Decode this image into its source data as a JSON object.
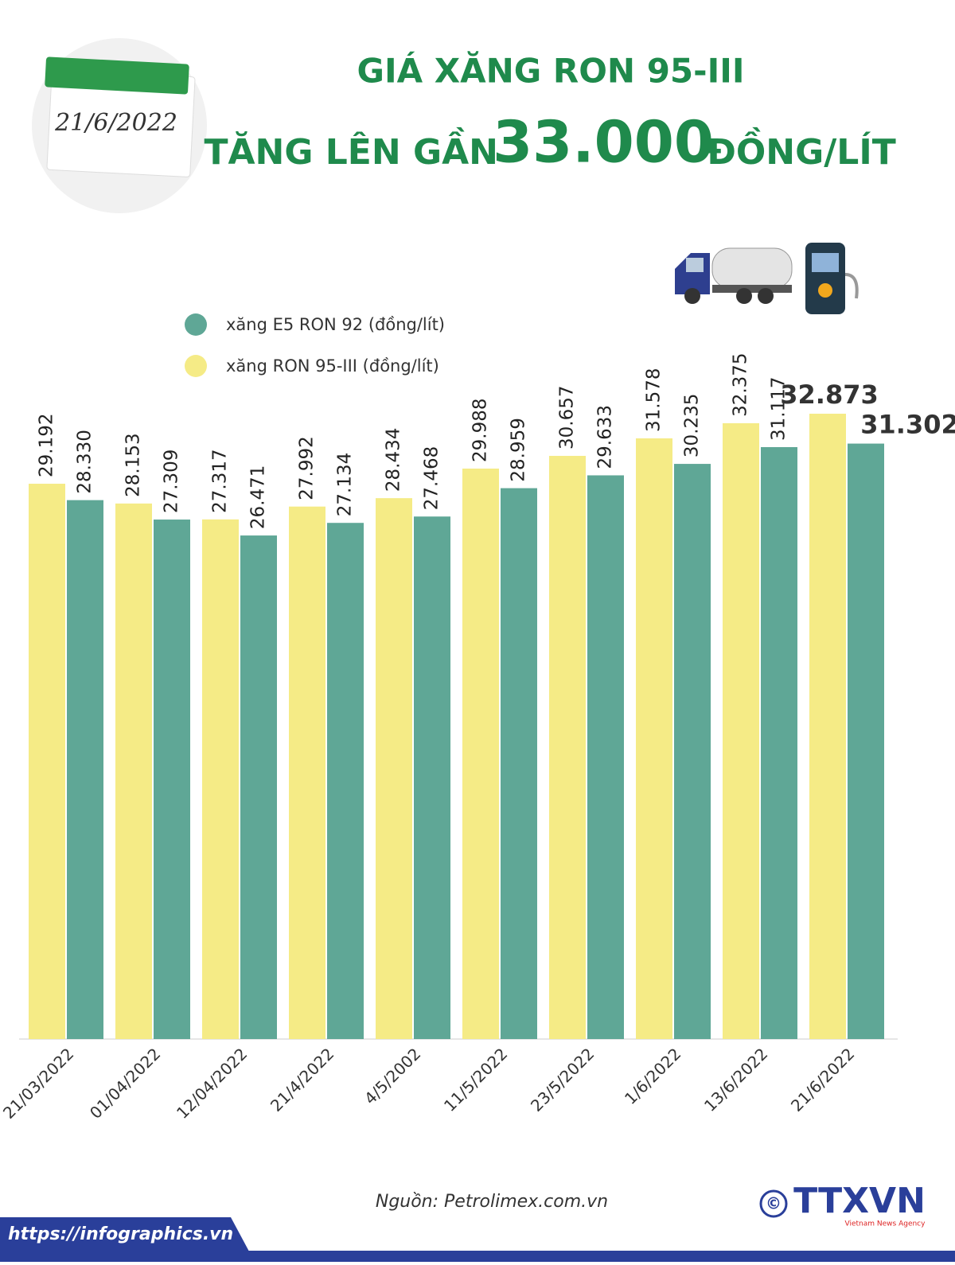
{
  "chart_data": {
    "type": "bar",
    "date": "21/6/2022",
    "title": "GIÁ XĂNG RON 95-III",
    "subtitle_prefix": "TĂNG LÊN GẦN",
    "subtitle_number": "33.000",
    "subtitle_suffix": "ĐỒNG/LÍT",
    "categories": [
      "21/03/2022",
      "01/04/2022",
      "12/04/2022",
      "21/4/2022",
      "4/5/2002",
      "11/5/2022",
      "23/5/2022",
      "1/6/2022",
      "13/6/2022",
      "21/6/2022"
    ],
    "series": [
      {
        "name": "xăng E5 RON 92 (đồng/lít)",
        "color": "#5fa796",
        "values": [
          28330,
          27309,
          26471,
          27134,
          27468,
          28959,
          29633,
          30235,
          31117,
          31302
        ],
        "value_labels": [
          "28.330",
          "27.309",
          "26.471",
          "27.134",
          "27.468",
          "28.959",
          "29.633",
          "30.235",
          "31.117",
          "31.302"
        ]
      },
      {
        "name": "xăng RON 95-III (đồng/lít)",
        "color": "#f5eb86",
        "values": [
          29192,
          28153,
          27317,
          27992,
          28434,
          29988,
          30657,
          31578,
          32375,
          32873
        ],
        "value_labels": [
          "29.192",
          "28.153",
          "27.317",
          "27.992",
          "28.434",
          "29.988",
          "30.657",
          "31.578",
          "32.375",
          "32.873"
        ]
      }
    ],
    "source": "Nguồn: Petrolimex.com.vn",
    "url": "https://infographics.vn",
    "copyright": "©",
    "agency": "TTXVN",
    "agency_sub": "Vietnam News Agency"
  }
}
